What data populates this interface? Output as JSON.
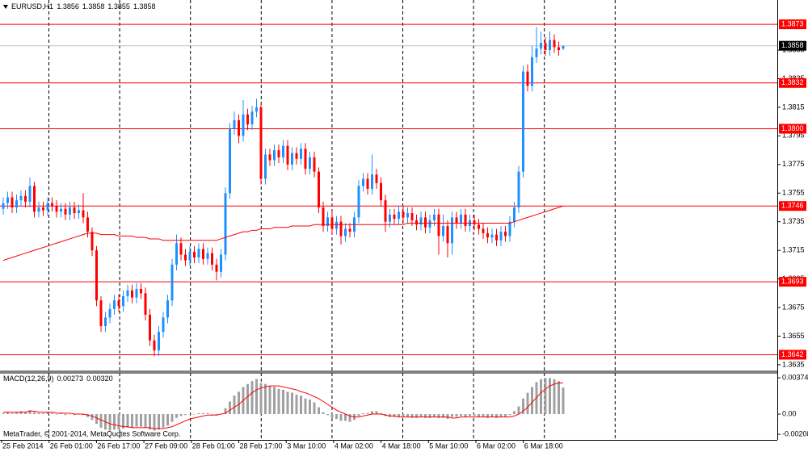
{
  "chart_data": [
    {
      "type": "candlestick",
      "symbol": "EURUSD,H1",
      "header_ohlc": [
        1.3856,
        1.3858,
        1.3855,
        1.3858
      ],
      "up_color": "#1e90ff",
      "down_color": "#ff0000",
      "ma_color": "#ff0000",
      "level_color": "#ff0000",
      "ylim": [
        1.3631,
        1.389
      ],
      "yticks": [
        1.3855,
        1.3835,
        1.3815,
        1.3795,
        1.3775,
        1.3755,
        1.3735,
        1.3715,
        1.3695,
        1.3675,
        1.3655,
        1.3635
      ],
      "levels": [
        1.3873,
        1.3832,
        {
          "value": 1.38,
          "label": "1.3800"
        },
        1.3746,
        1.3693,
        1.3642
      ],
      "current_price": 1.3858,
      "x_labels": [
        "25 Feb 2014",
        "26 Feb 01:00",
        "26 Feb 17:00",
        "27 Feb 09:00",
        "28 Feb 01:00",
        "28 Feb 17:00",
        "3 Mar 10:00",
        "4 Mar 02:00",
        "4 Mar 18:00",
        "5 Mar 10:00",
        "6 Mar 02:00",
        "6 Mar 18:00"
      ],
      "candles": [
        [
          1.3744,
          1.3752,
          1.374,
          1.3748
        ],
        [
          1.3748,
          1.3756,
          1.3744,
          1.3752
        ],
        [
          1.3752,
          1.3756,
          1.3741,
          1.3745
        ],
        [
          1.3745,
          1.3754,
          1.3741,
          1.375
        ],
        [
          1.375,
          1.3757,
          1.3746,
          1.3753
        ],
        [
          1.3753,
          1.3757,
          1.3745,
          1.3749
        ],
        [
          1.3749,
          1.3766,
          1.3745,
          1.376
        ],
        [
          1.376,
          1.3763,
          1.3738,
          1.3742
        ],
        [
          1.3742,
          1.3749,
          1.3738,
          1.3745
        ],
        [
          1.3745,
          1.3749,
          1.3739,
          1.3743
        ],
        [
          1.3743,
          1.3752,
          1.3739,
          1.3748
        ],
        [
          1.3748,
          1.3752,
          1.3742,
          1.3746
        ],
        [
          1.3746,
          1.375,
          1.3738,
          1.3742
        ],
        [
          1.3742,
          1.3748,
          1.3738,
          1.3744
        ],
        [
          1.3744,
          1.3748,
          1.3736,
          1.374
        ],
        [
          1.374,
          1.3749,
          1.3736,
          1.3745
        ],
        [
          1.3745,
          1.3749,
          1.3737,
          1.3741
        ],
        [
          1.3741,
          1.3747,
          1.3737,
          1.3743
        ],
        [
          1.3743,
          1.3755,
          1.3734,
          1.3738
        ],
        [
          1.3738,
          1.3742,
          1.3724,
          1.3728
        ],
        [
          1.3728,
          1.3731,
          1.3711,
          1.3715
        ],
        [
          1.3715,
          1.3718,
          1.3676,
          1.368
        ],
        [
          1.368,
          1.3683,
          1.3658,
          1.3662
        ],
        [
          1.3662,
          1.3672,
          1.3658,
          1.3668
        ],
        [
          1.3668,
          1.3678,
          1.3664,
          1.3674
        ],
        [
          1.3674,
          1.3684,
          1.367,
          1.368
        ],
        [
          1.368,
          1.3684,
          1.3672,
          1.3676
        ],
        [
          1.3676,
          1.3687,
          1.3672,
          1.3683
        ],
        [
          1.3683,
          1.3691,
          1.3679,
          1.3687
        ],
        [
          1.3687,
          1.3691,
          1.3678,
          1.3682
        ],
        [
          1.3682,
          1.3692,
          1.3678,
          1.3688
        ],
        [
          1.3688,
          1.3692,
          1.3681,
          1.3685
        ],
        [
          1.3685,
          1.3689,
          1.3666,
          1.367
        ],
        [
          1.367,
          1.3674,
          1.3648,
          1.3652
        ],
        [
          1.3652,
          1.3656,
          1.3641,
          1.3645
        ],
        [
          1.3645,
          1.3662,
          1.3641,
          1.3658
        ],
        [
          1.3658,
          1.3672,
          1.3654,
          1.3668
        ],
        [
          1.3668,
          1.3684,
          1.3664,
          1.368
        ],
        [
          1.368,
          1.3709,
          1.3676,
          1.3705
        ],
        [
          1.3705,
          1.3726,
          1.3701,
          1.372
        ],
        [
          1.372,
          1.3724,
          1.3708,
          1.3712
        ],
        [
          1.3712,
          1.3716,
          1.3704,
          1.3708
        ],
        [
          1.3708,
          1.3718,
          1.3704,
          1.3714
        ],
        [
          1.3714,
          1.3718,
          1.3706,
          1.371
        ],
        [
          1.371,
          1.372,
          1.3706,
          1.3716
        ],
        [
          1.3716,
          1.372,
          1.3705,
          1.3709
        ],
        [
          1.3709,
          1.3717,
          1.3705,
          1.3713
        ],
        [
          1.3713,
          1.3717,
          1.3701,
          1.3705
        ],
        [
          1.3705,
          1.3709,
          1.3694,
          1.37
        ],
        [
          1.37,
          1.3716,
          1.3696,
          1.3712
        ],
        [
          1.3712,
          1.3759,
          1.3708,
          1.3755
        ],
        [
          1.3755,
          1.3804,
          1.3751,
          1.38
        ],
        [
          1.38,
          1.3812,
          1.3796,
          1.3806
        ],
        [
          1.3806,
          1.381,
          1.379,
          1.3795
        ],
        [
          1.3795,
          1.382,
          1.3791,
          1.381
        ],
        [
          1.381,
          1.3814,
          1.3799,
          1.3803
        ],
        [
          1.3803,
          1.3816,
          1.3799,
          1.3812
        ],
        [
          1.3812,
          1.3821,
          1.3808,
          1.3815
        ],
        [
          1.3815,
          1.3818,
          1.3761,
          1.3765
        ],
        [
          1.3765,
          1.3786,
          1.3761,
          1.3782
        ],
        [
          1.3782,
          1.3786,
          1.3774,
          1.3778
        ],
        [
          1.3778,
          1.3789,
          1.3774,
          1.3785
        ],
        [
          1.3785,
          1.3789,
          1.3776,
          1.378
        ],
        [
          1.378,
          1.3792,
          1.3776,
          1.3788
        ],
        [
          1.3788,
          1.3792,
          1.3771,
          1.3775
        ],
        [
          1.3775,
          1.3787,
          1.3771,
          1.3783
        ],
        [
          1.3783,
          1.3787,
          1.3775,
          1.3779
        ],
        [
          1.3779,
          1.379,
          1.3775,
          1.3786
        ],
        [
          1.3786,
          1.379,
          1.3768,
          1.3772
        ],
        [
          1.3772,
          1.3784,
          1.3768,
          1.378
        ],
        [
          1.378,
          1.3784,
          1.3766,
          1.377
        ],
        [
          1.377,
          1.3773,
          1.3741,
          1.3745
        ],
        [
          1.3745,
          1.3749,
          1.3728,
          1.3732
        ],
        [
          1.3732,
          1.3742,
          1.3728,
          1.3738
        ],
        [
          1.3738,
          1.3742,
          1.3726,
          1.373
        ],
        [
          1.373,
          1.3739,
          1.3726,
          1.3735
        ],
        [
          1.3735,
          1.3739,
          1.3719,
          1.3725
        ],
        [
          1.3725,
          1.3734,
          1.3721,
          1.373
        ],
        [
          1.373,
          1.3734,
          1.3724,
          1.3728
        ],
        [
          1.3728,
          1.3742,
          1.3724,
          1.3738
        ],
        [
          1.3738,
          1.3764,
          1.3734,
          1.376
        ],
        [
          1.376,
          1.3769,
          1.3756,
          1.3765
        ],
        [
          1.3765,
          1.3769,
          1.3754,
          1.3758
        ],
        [
          1.3758,
          1.3782,
          1.3754,
          1.3768
        ],
        [
          1.3768,
          1.3772,
          1.3758,
          1.3762
        ],
        [
          1.3762,
          1.3766,
          1.3746,
          1.375
        ],
        [
          1.375,
          1.3754,
          1.3728,
          1.3735
        ],
        [
          1.3735,
          1.3744,
          1.3731,
          1.374
        ],
        [
          1.374,
          1.3744,
          1.3733,
          1.3737
        ],
        [
          1.3737,
          1.3746,
          1.3733,
          1.3742
        ],
        [
          1.3742,
          1.3746,
          1.3734,
          1.3738
        ],
        [
          1.3738,
          1.3745,
          1.3734,
          1.3741
        ],
        [
          1.3741,
          1.3745,
          1.3732,
          1.3736
        ],
        [
          1.3736,
          1.374,
          1.3729,
          1.3733
        ],
        [
          1.3733,
          1.3742,
          1.3729,
          1.3738
        ],
        [
          1.3738,
          1.3742,
          1.3727,
          1.3731
        ],
        [
          1.3731,
          1.374,
          1.3727,
          1.3736
        ],
        [
          1.3736,
          1.3744,
          1.3732,
          1.374
        ],
        [
          1.374,
          1.3744,
          1.3712,
          1.3725
        ],
        [
          1.3725,
          1.374,
          1.3721,
          1.3732
        ],
        [
          1.3732,
          1.3736,
          1.371,
          1.372
        ],
        [
          1.372,
          1.3742,
          1.3712,
          1.3738
        ],
        [
          1.3738,
          1.3742,
          1.373,
          1.3734
        ],
        [
          1.3734,
          1.3744,
          1.373,
          1.374
        ],
        [
          1.374,
          1.3744,
          1.3728,
          1.3732
        ],
        [
          1.3732,
          1.374,
          1.3728,
          1.3736
        ],
        [
          1.3736,
          1.374,
          1.3729,
          1.3733
        ],
        [
          1.3733,
          1.3737,
          1.3726,
          1.373
        ],
        [
          1.373,
          1.3734,
          1.3723,
          1.3727
        ],
        [
          1.3727,
          1.3731,
          1.372,
          1.3724
        ],
        [
          1.3724,
          1.373,
          1.372,
          1.3726
        ],
        [
          1.3726,
          1.373,
          1.3718,
          1.3722
        ],
        [
          1.3722,
          1.3732,
          1.3718,
          1.3728
        ],
        [
          1.3728,
          1.3732,
          1.3721,
          1.3725
        ],
        [
          1.3725,
          1.3739,
          1.3721,
          1.3735
        ],
        [
          1.3735,
          1.3749,
          1.3731,
          1.3745
        ],
        [
          1.3745,
          1.3774,
          1.3741,
          1.377
        ],
        [
          1.377,
          1.3844,
          1.3766,
          1.384
        ],
        [
          1.384,
          1.3845,
          1.3826,
          1.383
        ],
        [
          1.383,
          1.3858,
          1.3826,
          1.385
        ],
        [
          1.385,
          1.3871,
          1.3846,
          1.3856
        ],
        [
          1.3856,
          1.3868,
          1.3852,
          1.386
        ],
        [
          1.386,
          1.3864,
          1.3851,
          1.3855
        ],
        [
          1.3855,
          1.3868,
          1.3851,
          1.3862
        ],
        [
          1.3862,
          1.3866,
          1.3853,
          1.3857
        ],
        [
          1.3857,
          1.3861,
          1.3851,
          1.3855
        ],
        [
          1.3856,
          1.3858,
          1.3855,
          1.3858
        ]
      ],
      "ma": {
        "values": [
          1.3708,
          1.3709,
          1.371,
          1.3711,
          1.3712,
          1.3713,
          1.3714,
          1.3715,
          1.3716,
          1.3717,
          1.3718,
          1.3719,
          1.372,
          1.3721,
          1.3722,
          1.3723,
          1.3724,
          1.3725,
          1.3726,
          1.3727,
          1.3727,
          1.3727,
          1.3726,
          1.3726,
          1.3726,
          1.3726,
          1.3725,
          1.3725,
          1.3725,
          1.3725,
          1.3724,
          1.3724,
          1.3724,
          1.3723,
          1.3723,
          1.3723,
          1.3722,
          1.3722,
          1.3722,
          1.3722,
          1.3722,
          1.3722,
          1.3722,
          1.3722,
          1.3722,
          1.3722,
          1.3722,
          1.3722,
          1.3722,
          1.3723,
          1.3724,
          1.3725,
          1.3726,
          1.3727,
          1.3728,
          1.3728,
          1.3729,
          1.3729,
          1.373,
          1.373,
          1.373,
          1.3731,
          1.3731,
          1.3731,
          1.3731,
          1.3732,
          1.3732,
          1.3732,
          1.3732,
          1.3732,
          1.3733,
          1.3733,
          1.3733,
          1.3733,
          1.3733,
          1.3733,
          1.3733,
          1.3733,
          1.3733,
          1.3733,
          1.3733,
          1.3733,
          1.3733,
          1.3733,
          1.3733,
          1.3733,
          1.3733,
          1.3733,
          1.3733,
          1.3733,
          1.3733,
          1.3734,
          1.3734,
          1.3734,
          1.3734,
          1.3734,
          1.3734,
          1.3734,
          1.3734,
          1.3734,
          1.3734,
          1.3734,
          1.3734,
          1.3734,
          1.3734,
          1.3734,
          1.3734,
          1.3734,
          1.3734,
          1.3734,
          1.3734,
          1.3734,
          1.3734,
          1.3734,
          1.3734,
          1.3735,
          1.3736,
          1.3737,
          1.3738,
          1.3739,
          1.374,
          1.3741,
          1.3742,
          1.3743,
          1.3744,
          1.3745,
          1.3746
        ]
      }
    },
    {
      "type": "macd",
      "name": "MACD(12,26,9)",
      "current": [
        0.00273,
        {
          "value": 0.0032,
          "label": "0.00320"
        }
      ],
      "hist_color": "#a0a0a0",
      "signal_color": "#ff0000",
      "ylim": [
        -0.00266,
        0.00416
      ],
      "yticks": [
        0.00374,
        {
          "value": 0,
          "label": "0.00"
        },
        -0.00208
      ],
      "credit": "MetaTrader, © 2001-2014, MetaQuotes Software Corp.",
      "histogram": [
        0.0001,
        0.0002,
        0.0001,
        0.0002,
        0.0003,
        0.0002,
        0.0004,
        0.0002,
        0.0001,
        0.0001,
        0.0002,
        0.0001,
        0,
        0.0001,
        -0.0001,
        0,
        -0.0001,
        0,
        -0.0001,
        -0.0003,
        -0.0006,
        -0.001,
        -0.0014,
        -0.0016,
        -0.0017,
        -0.0016,
        -0.0016,
        -0.0015,
        -0.0014,
        -0.0014,
        -0.0013,
        -0.0013,
        -0.0014,
        -0.0016,
        -0.0017,
        -0.0016,
        -0.0014,
        -0.0012,
        -0.0008,
        -0.0004,
        -0.0002,
        -0.0001,
        0,
        0,
        0.0001,
        0.0001,
        0.0001,
        0,
        -0.0001,
        0,
        0.0006,
        0.0013,
        0.0019,
        0.0023,
        0.0028,
        0.0031,
        0.0034,
        0.0036,
        0.0032,
        0.0031,
        0.0029,
        0.0028,
        0.0026,
        0.0025,
        0.0023,
        0.0022,
        0.002,
        0.0019,
        0.0016,
        0.0015,
        0.0012,
        0.0007,
        0.0002,
        -0.0001,
        -0.0004,
        -0.0005,
        -0.0007,
        -0.0007,
        -0.0008,
        -0.0006,
        -0.0002,
        0.0001,
        0.0001,
        0.0003,
        0.0003,
        0.0001,
        -0.0002,
        -0.0003,
        -0.0003,
        -0.0003,
        -0.0003,
        -0.0003,
        -0.0004,
        -0.0004,
        -0.0003,
        -0.0004,
        -0.0004,
        -0.0003,
        -0.0004,
        -0.0004,
        -0.0005,
        -0.0003,
        -0.0003,
        -0.0002,
        -0.0003,
        -0.0002,
        -0.0002,
        -0.0003,
        -0.0003,
        -0.0004,
        -0.0003,
        -0.0004,
        -0.0003,
        -0.0003,
        -0.0001,
        0.0003,
        0.0008,
        0.0016,
        0.0022,
        0.0028,
        0.0033,
        0.0036,
        0.0037,
        0.0037,
        0.0036,
        0.0034,
        0.00273
      ],
      "signal": [
        0.0002,
        0.0002,
        0.0002,
        0.0002,
        0.0002,
        0.0002,
        0.0003,
        0.0003,
        0.0002,
        0.0002,
        0.0002,
        0.0002,
        0.0001,
        0.0001,
        0.0001,
        0.0001,
        0,
        0,
        0,
        -0.0001,
        -0.0002,
        -0.0004,
        -0.0006,
        -0.0008,
        -0.001,
        -0.0011,
        -0.0012,
        -0.0013,
        -0.0013,
        -0.0014,
        -0.0014,
        -0.0014,
        -0.0014,
        -0.0014,
        -0.0015,
        -0.0015,
        -0.0015,
        -0.0014,
        -0.0013,
        -0.0011,
        -0.0009,
        -0.0007,
        -0.0005,
        -0.0004,
        -0.0003,
        -0.0002,
        -0.0001,
        -0.0001,
        -0.0001,
        0,
        0.0001,
        0.0004,
        0.0007,
        0.001,
        0.0014,
        0.0018,
        0.0022,
        0.0025,
        0.0027,
        0.0028,
        0.0029,
        0.0029,
        0.0029,
        0.0028,
        0.0027,
        0.0026,
        0.0025,
        0.0023,
        0.0022,
        0.002,
        0.0018,
        0.0016,
        0.0013,
        0.001,
        0.0007,
        0.0004,
        0.0002,
        0,
        -0.0002,
        -0.0003,
        -0.0003,
        -0.0002,
        -0.0001,
        0,
        0,
        0,
        -0.0001,
        -0.0002,
        -0.0002,
        -0.0003,
        -0.0003,
        -0.0003,
        -0.0003,
        -0.0003,
        -0.0003,
        -0.0003,
        -0.0003,
        -0.0003,
        -0.0003,
        -0.0003,
        -0.0003,
        -0.0004,
        -0.0004,
        -0.0003,
        -0.0003,
        -0.0003,
        -0.0003,
        -0.0003,
        -0.0003,
        -0.0003,
        -0.0003,
        -0.0003,
        -0.0003,
        -0.0003,
        -0.0003,
        -0.0002,
        0,
        0.0003,
        0.0007,
        0.0012,
        0.0017,
        0.0022,
        0.0026,
        0.0029,
        0.0031,
        0.0032,
        0.0032
      ]
    }
  ]
}
